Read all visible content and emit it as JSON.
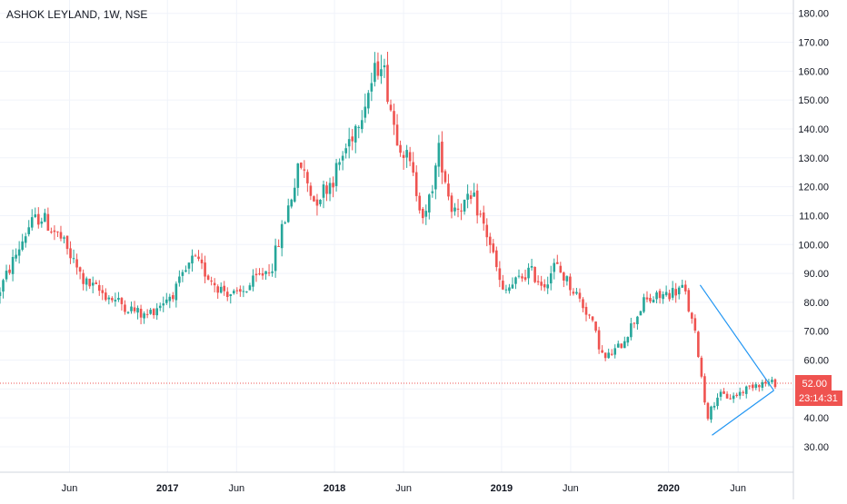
{
  "chart_data": {
    "type": "candlestick",
    "title": "ASHOK LEYLAND, 1W, NSE",
    "y_axis": {
      "position": "right",
      "ticks": [
        "180.00",
        "170.00",
        "160.00",
        "150.00",
        "140.00",
        "130.00",
        "120.00",
        "110.00",
        "100.00",
        "90.00",
        "80.00",
        "70.00",
        "60.00",
        "50.00",
        "40.00",
        "30.00"
      ],
      "ylim": [
        22,
        183
      ]
    },
    "x_axis": {
      "ticks": [
        "Jun",
        "2017",
        "Jun",
        "2018",
        "Jun",
        "2019",
        "Jun",
        "2020",
        "Jun"
      ],
      "start": "2016-01-01",
      "end": "2020-08-31"
    },
    "grid": true,
    "colors": {
      "up": "#26a69a",
      "down": "#ef5350",
      "trendline": "#2196f3",
      "price_line": "#ef5350"
    },
    "current_price": {
      "value": 52.0,
      "label": "52.00",
      "countdown": "23:14:31"
    },
    "keypoints": [
      [
        "2016-01-01",
        82
      ],
      [
        "2016-03-10",
        106
      ],
      [
        "2016-04-05",
        110
      ],
      [
        "2016-05-20",
        102
      ],
      [
        "2016-07-10",
        87
      ],
      [
        "2016-09-01",
        82
      ],
      [
        "2016-11-20",
        75
      ],
      [
        "2017-01-25",
        84
      ],
      [
        "2017-03-05",
        95
      ],
      [
        "2017-05-01",
        85
      ],
      [
        "2017-06-10",
        82
      ],
      [
        "2017-08-25",
        93
      ],
      [
        "2017-10-25",
        128
      ],
      [
        "2017-11-25",
        115
      ],
      [
        "2018-01-05",
        123
      ],
      [
        "2018-02-25",
        142
      ],
      [
        "2018-04-20",
        165
      ],
      [
        "2018-05-20",
        140
      ],
      [
        "2018-06-20",
        128
      ],
      [
        "2018-07-25",
        108
      ],
      [
        "2018-08-25",
        133
      ],
      [
        "2018-09-20",
        113
      ],
      [
        "2018-11-10",
        115
      ],
      [
        "2018-12-15",
        100
      ],
      [
        "2019-01-10",
        83
      ],
      [
        "2019-03-10",
        91
      ],
      [
        "2019-04-10",
        86
      ],
      [
        "2019-05-05",
        93
      ],
      [
        "2019-06-20",
        83
      ],
      [
        "2019-07-20",
        75
      ],
      [
        "2019-08-20",
        60
      ],
      [
        "2019-09-25",
        65
      ],
      [
        "2019-11-15",
        80
      ],
      [
        "2019-12-20",
        82
      ],
      [
        "2020-02-10",
        85
      ],
      [
        "2020-03-10",
        66
      ],
      [
        "2020-04-01",
        40
      ],
      [
        "2020-04-25",
        48
      ],
      [
        "2020-05-25",
        47
      ],
      [
        "2020-07-15",
        52
      ],
      [
        "2020-08-15",
        52
      ]
    ],
    "annotations": [
      {
        "type": "trendline",
        "points": [
          [
            "2020-03-10",
            86
          ],
          [
            "2020-08-18",
            49.5
          ]
        ]
      },
      {
        "type": "trendline",
        "points": [
          [
            "2020-04-05",
            34
          ],
          [
            "2020-08-18",
            49.5
          ]
        ]
      }
    ]
  }
}
